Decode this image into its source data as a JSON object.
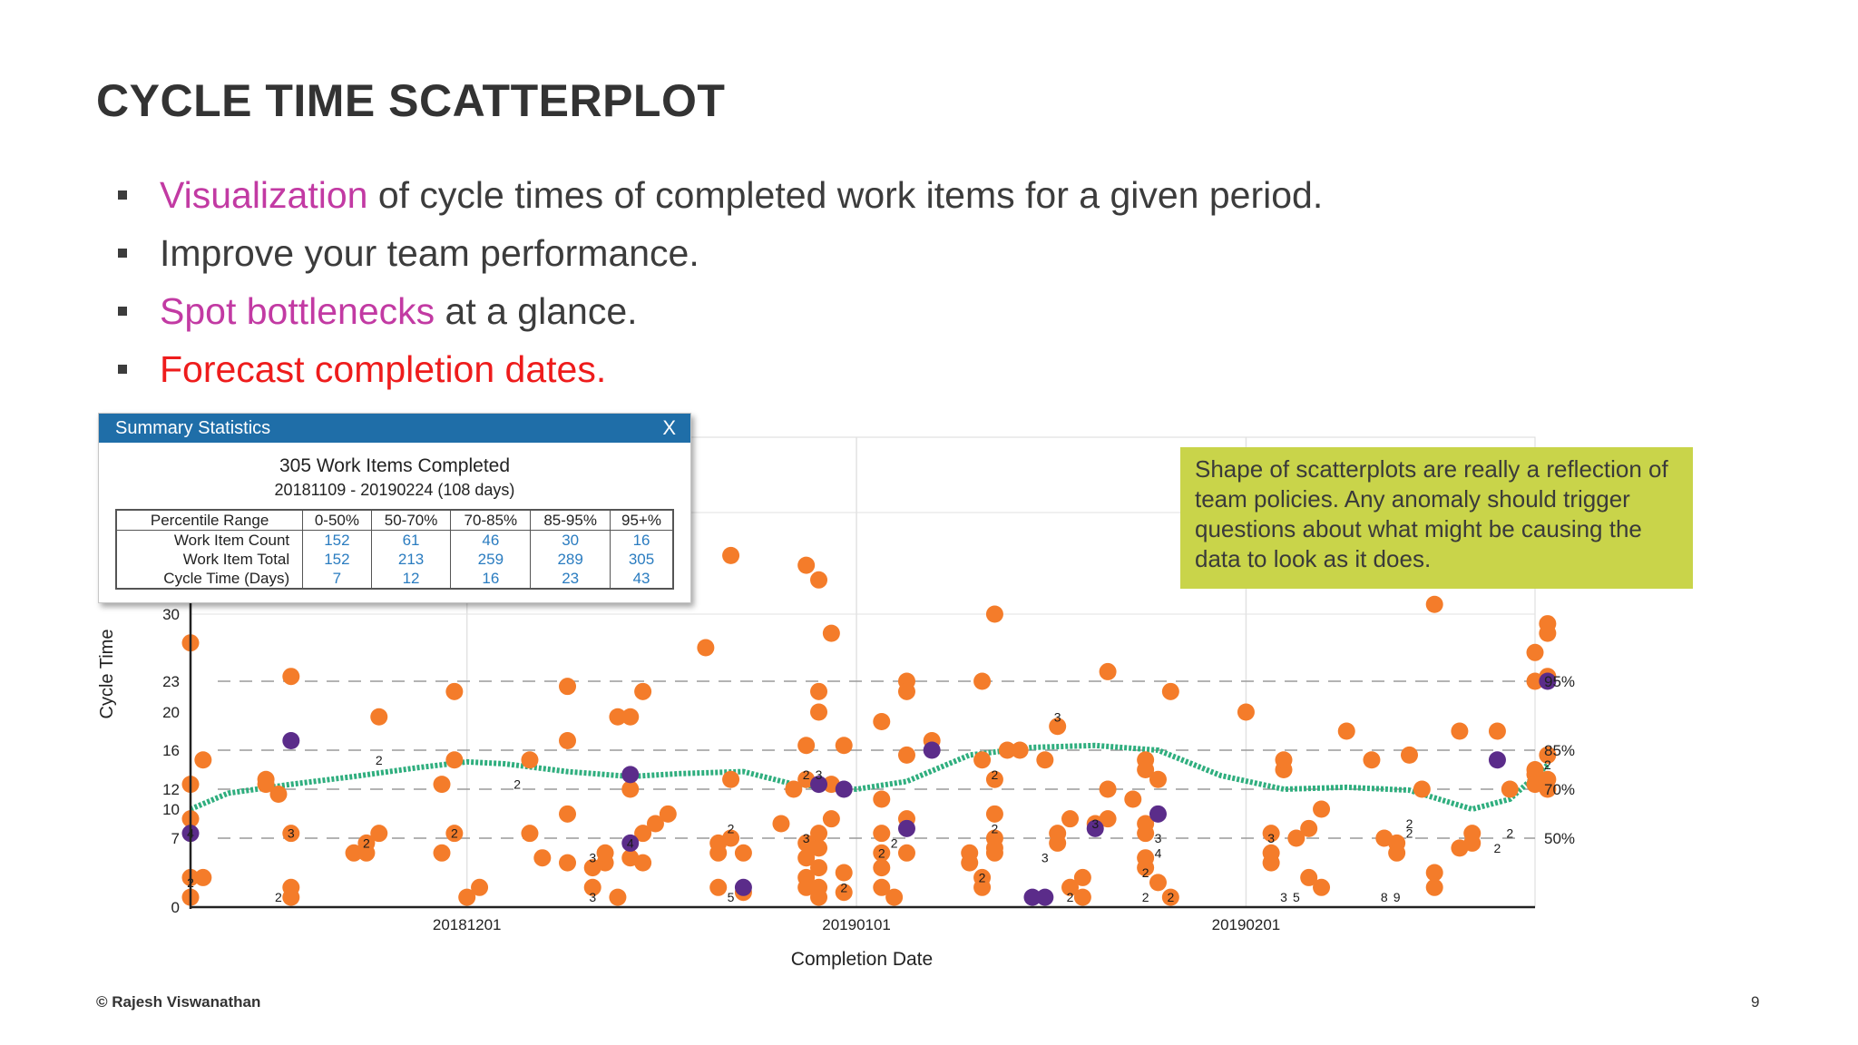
{
  "slide": {
    "title": "CYCLE TIME SCATTERPLOT",
    "bullets": [
      {
        "parts": [
          {
            "text": "Visualization",
            "color": "#c23aa3"
          },
          {
            "text": " of cycle times of completed work items for a given period.",
            "color": "#3c3c3c"
          }
        ]
      },
      {
        "parts": [
          {
            "text": "Improve your team performance.",
            "color": "#3c3c3c"
          }
        ]
      },
      {
        "parts": [
          {
            "text": "Spot bottlenecks",
            "color": "#c23aa3"
          },
          {
            "text": " at a glance.",
            "color": "#3c3c3c"
          }
        ]
      },
      {
        "parts": [
          {
            "text": "Forecast completion dates.",
            "color": "#ee1c1c"
          }
        ]
      }
    ],
    "footer": "© Rajesh Viswanathan",
    "page_number": "9"
  },
  "summary_panel": {
    "header": "Summary Statistics",
    "close_label": "X",
    "heading": "305 Work Items Completed",
    "subheading": "20181109 - 20190224 (108 days)",
    "columns": [
      "Percentile Range",
      "0-50%",
      "50-70%",
      "70-85%",
      "85-95%",
      "95+%"
    ],
    "rows": [
      {
        "label": "Work Item Count",
        "values": [
          "152",
          "61",
          "46",
          "30",
          "16"
        ]
      },
      {
        "label": "Work Item Total",
        "values": [
          "152",
          "213",
          "259",
          "289",
          "305"
        ]
      },
      {
        "label": "Cycle Time (Days)",
        "values": [
          "7",
          "12",
          "16",
          "23",
          "43"
        ]
      }
    ]
  },
  "note": {
    "text": "Shape of scatterplots are really a reflection of team policies. Any anomaly should trigger questions about what might be causing the data to look as it does."
  },
  "chart_data": {
    "type": "scatter",
    "xlabel": "Completion Date",
    "ylabel": "Cycle Time",
    "x_tick_labels": [
      {
        "date": "2018-12-01",
        "label": "20181201"
      },
      {
        "date": "2019-01-01",
        "label": "20190101"
      },
      {
        "date": "2019-02-01",
        "label": "20190201"
      }
    ],
    "y_ticks": [
      0,
      7,
      10,
      12,
      16,
      20,
      23,
      30
    ],
    "xlim": [
      "2018-11-09",
      "2019-02-24"
    ],
    "percentile_lines": [
      {
        "label": "50%",
        "value": 7
      },
      {
        "label": "70%",
        "value": 12
      },
      {
        "label": "85%",
        "value": 16
      },
      {
        "label": "95%",
        "value": 23
      }
    ],
    "colors": {
      "orange": "#f47c2a",
      "purple": "#5b2c8a",
      "trend": "#2fae7e",
      "grid": "#9a9a9a"
    },
    "orange_points": [
      [
        "2018-11-09",
        27
      ],
      [
        "2018-11-09",
        12.5
      ],
      [
        "2018-11-09",
        9
      ],
      [
        "2018-11-09",
        3
      ],
      [
        "2018-11-09",
        1
      ],
      [
        "2018-11-10",
        15
      ],
      [
        "2018-11-10",
        3
      ],
      [
        "2018-11-15",
        13
      ],
      [
        "2018-11-15",
        12.5
      ],
      [
        "2018-11-16",
        11.5
      ],
      [
        "2018-11-17",
        23.5
      ],
      [
        "2018-11-17",
        7.5
      ],
      [
        "2018-11-17",
        2
      ],
      [
        "2018-11-17",
        1
      ],
      [
        "2018-11-22",
        5.5
      ],
      [
        "2018-11-23",
        6.5
      ],
      [
        "2018-11-23",
        5.5
      ],
      [
        "2018-11-24",
        19.5
      ],
      [
        "2018-11-24",
        7.5
      ],
      [
        "2018-11-29",
        12.5
      ],
      [
        "2018-11-29",
        5.5
      ],
      [
        "2018-11-30",
        22
      ],
      [
        "2018-11-30",
        15
      ],
      [
        "2018-11-30",
        7.5
      ],
      [
        "2018-12-01",
        1
      ],
      [
        "2018-12-02",
        2
      ],
      [
        "2018-12-06",
        15
      ],
      [
        "2018-12-06",
        7.5
      ],
      [
        "2018-12-07",
        5
      ],
      [
        "2018-12-09",
        22.5
      ],
      [
        "2018-12-09",
        17
      ],
      [
        "2018-12-09",
        9.5
      ],
      [
        "2018-12-09",
        4.5
      ],
      [
        "2018-12-11",
        4
      ],
      [
        "2018-12-11",
        2
      ],
      [
        "2018-12-12",
        4.5
      ],
      [
        "2018-12-12",
        5.5
      ],
      [
        "2018-12-13",
        19.5
      ],
      [
        "2018-12-13",
        1
      ],
      [
        "2018-12-14",
        19.5
      ],
      [
        "2018-12-14",
        12
      ],
      [
        "2018-12-14",
        5
      ],
      [
        "2018-12-15",
        7.5
      ],
      [
        "2018-12-15",
        4.5
      ],
      [
        "2018-12-15",
        22
      ],
      [
        "2018-12-16",
        8.5
      ],
      [
        "2018-12-17",
        9.5
      ],
      [
        "2018-12-20",
        26.5
      ],
      [
        "2018-12-21",
        6.5
      ],
      [
        "2018-12-21",
        5.5
      ],
      [
        "2018-12-21",
        2
      ],
      [
        "2018-12-22",
        13
      ],
      [
        "2018-12-22",
        7
      ],
      [
        "2018-12-22",
        36
      ],
      [
        "2018-12-23",
        5.5
      ],
      [
        "2018-12-23",
        1.5
      ],
      [
        "2018-12-26",
        8.5
      ],
      [
        "2018-12-27",
        12
      ],
      [
        "2018-12-28",
        35
      ],
      [
        "2018-12-28",
        16.5
      ],
      [
        "2018-12-28",
        13
      ],
      [
        "2018-12-28",
        6.5
      ],
      [
        "2018-12-28",
        5
      ],
      [
        "2018-12-28",
        3
      ],
      [
        "2018-12-28",
        2
      ],
      [
        "2018-12-29",
        33.5
      ],
      [
        "2018-12-29",
        22
      ],
      [
        "2018-12-29",
        20
      ],
      [
        "2018-12-29",
        7.5
      ],
      [
        "2018-12-29",
        6
      ],
      [
        "2018-12-29",
        4
      ],
      [
        "2018-12-29",
        2
      ],
      [
        "2018-12-29",
        1
      ],
      [
        "2018-12-30",
        28
      ],
      [
        "2018-12-30",
        9
      ],
      [
        "2018-12-30",
        12.5
      ],
      [
        "2018-12-31",
        16.5
      ],
      [
        "2018-12-31",
        3.5
      ],
      [
        "2018-12-31",
        1.5
      ],
      [
        "2019-01-03",
        19
      ],
      [
        "2019-01-03",
        11
      ],
      [
        "2019-01-03",
        7.5
      ],
      [
        "2019-01-03",
        5.5
      ],
      [
        "2019-01-03",
        4
      ],
      [
        "2019-01-03",
        2
      ],
      [
        "2019-01-04",
        1
      ],
      [
        "2019-01-05",
        23
      ],
      [
        "2019-01-05",
        22
      ],
      [
        "2019-01-05",
        15.5
      ],
      [
        "2019-01-05",
        9
      ],
      [
        "2019-01-05",
        5.5
      ],
      [
        "2019-01-07",
        17
      ],
      [
        "2019-01-10",
        5.5
      ],
      [
        "2019-01-10",
        4.5
      ],
      [
        "2019-01-11",
        23
      ],
      [
        "2019-01-11",
        15
      ],
      [
        "2019-01-11",
        3
      ],
      [
        "2019-01-11",
        2
      ],
      [
        "2019-01-12",
        6
      ],
      [
        "2019-01-12",
        30
      ],
      [
        "2019-01-12",
        13
      ],
      [
        "2019-01-12",
        9.5
      ],
      [
        "2019-01-12",
        7
      ],
      [
        "2019-01-12",
        5.5
      ],
      [
        "2019-01-13",
        16
      ],
      [
        "2019-01-14",
        16
      ],
      [
        "2019-01-16",
        15
      ],
      [
        "2019-01-17",
        7.5
      ],
      [
        "2019-01-17",
        6.5
      ],
      [
        "2019-01-17",
        18.5
      ],
      [
        "2019-01-18",
        2
      ],
      [
        "2019-01-18",
        9
      ],
      [
        "2019-01-19",
        3
      ],
      [
        "2019-01-19",
        1
      ],
      [
        "2019-01-20",
        8.5
      ],
      [
        "2019-01-21",
        24
      ],
      [
        "2019-01-21",
        12
      ],
      [
        "2019-01-21",
        9
      ],
      [
        "2019-01-23",
        11
      ],
      [
        "2019-01-24",
        15
      ],
      [
        "2019-01-24",
        14
      ],
      [
        "2019-01-24",
        8.5
      ],
      [
        "2019-01-24",
        7.5
      ],
      [
        "2019-01-24",
        5
      ],
      [
        "2019-01-24",
        4
      ],
      [
        "2019-01-25",
        13
      ],
      [
        "2019-01-25",
        2.5
      ],
      [
        "2019-01-26",
        1
      ],
      [
        "2019-01-26",
        22
      ],
      [
        "2019-02-01",
        20
      ],
      [
        "2019-02-03",
        7.5
      ],
      [
        "2019-02-03",
        5.5
      ],
      [
        "2019-02-03",
        4.5
      ],
      [
        "2019-02-04",
        14
      ],
      [
        "2019-02-04",
        15
      ],
      [
        "2019-02-05",
        7
      ],
      [
        "2019-02-06",
        8
      ],
      [
        "2019-02-06",
        3
      ],
      [
        "2019-02-07",
        10
      ],
      [
        "2019-02-07",
        2
      ],
      [
        "2019-02-09",
        18
      ],
      [
        "2019-02-11",
        15
      ],
      [
        "2019-02-12",
        7
      ],
      [
        "2019-02-13",
        5.5
      ],
      [
        "2019-02-13",
        6.5
      ],
      [
        "2019-02-14",
        15.5
      ],
      [
        "2019-02-15",
        12
      ],
      [
        "2019-02-16",
        31
      ],
      [
        "2019-02-16",
        3.5
      ],
      [
        "2019-02-16",
        2
      ],
      [
        "2019-02-18",
        6
      ],
      [
        "2019-02-18",
        18
      ],
      [
        "2019-02-19",
        7.5
      ],
      [
        "2019-02-19",
        6.5
      ],
      [
        "2019-02-21",
        18
      ],
      [
        "2019-02-22",
        12
      ],
      [
        "2019-02-24",
        26
      ],
      [
        "2019-02-24",
        23
      ],
      [
        "2019-02-24",
        13.5
      ],
      [
        "2019-02-24",
        12.5
      ],
      [
        "2019-02-24",
        14
      ],
      [
        "2019-02-25",
        29
      ],
      [
        "2019-02-25",
        28
      ],
      [
        "2019-02-25",
        23.5
      ],
      [
        "2019-02-25",
        15.5
      ],
      [
        "2019-02-25",
        13
      ],
      [
        "2019-02-25",
        12
      ]
    ],
    "purple_points": [
      [
        "2018-11-09",
        7.5
      ],
      [
        "2018-11-17",
        17
      ],
      [
        "2018-12-14",
        13.5
      ],
      [
        "2018-12-14",
        6.5
      ],
      [
        "2018-12-23",
        2
      ],
      [
        "2018-12-29",
        12.5
      ],
      [
        "2018-12-31",
        12
      ],
      [
        "2019-01-05",
        8
      ],
      [
        "2019-01-07",
        16
      ],
      [
        "2019-01-15",
        1
      ],
      [
        "2019-01-16",
        1
      ],
      [
        "2019-01-20",
        8
      ],
      [
        "2019-01-25",
        9.5
      ],
      [
        "2019-02-21",
        15
      ],
      [
        "2019-02-25",
        23
      ]
    ],
    "count_labels": [
      [
        "2018-11-09",
        7.5,
        "4"
      ],
      [
        "2018-11-09",
        2.5,
        "2"
      ],
      [
        "2018-11-16",
        1,
        "2"
      ],
      [
        "2018-11-17",
        7.5,
        "3"
      ],
      [
        "2018-11-23",
        6.5,
        "2"
      ],
      [
        "2018-11-24",
        15,
        "2"
      ],
      [
        "2018-11-30",
        7.5,
        "2"
      ],
      [
        "2018-12-05",
        12.5,
        "2"
      ],
      [
        "2018-12-11",
        5,
        "3"
      ],
      [
        "2018-12-11",
        1,
        "3"
      ],
      [
        "2018-12-14",
        6.5,
        "4"
      ],
      [
        "2018-12-22",
        8,
        "2"
      ],
      [
        "2018-12-22",
        1,
        "5"
      ],
      [
        "2018-12-28",
        13.5,
        "2"
      ],
      [
        "2018-12-28",
        7,
        "3"
      ],
      [
        "2018-12-29",
        13.5,
        "3"
      ],
      [
        "2018-12-31",
        2,
        "2"
      ],
      [
        "2019-01-03",
        5.5,
        "2"
      ],
      [
        "2019-01-04",
        6.5,
        "2"
      ],
      [
        "2019-01-11",
        3,
        "2"
      ],
      [
        "2019-01-12",
        13.5,
        "2"
      ],
      [
        "2019-01-12",
        8,
        "2"
      ],
      [
        "2019-01-17",
        19.5,
        "3"
      ],
      [
        "2019-01-16",
        5,
        "3"
      ],
      [
        "2019-01-18",
        1,
        "2"
      ],
      [
        "2019-01-20",
        8.5,
        "3"
      ],
      [
        "2019-01-24",
        3.5,
        "2"
      ],
      [
        "2019-01-24",
        1,
        "2"
      ],
      [
        "2019-01-25",
        5.5,
        "4"
      ],
      [
        "2019-01-25",
        7,
        "3"
      ],
      [
        "2019-01-26",
        1,
        "2"
      ],
      [
        "2019-02-03",
        7,
        "3"
      ],
      [
        "2019-02-04",
        1,
        "3"
      ],
      [
        "2019-02-05",
        1,
        "5"
      ],
      [
        "2019-02-12",
        1,
        "8"
      ],
      [
        "2019-02-13",
        1,
        "9"
      ],
      [
        "2019-02-14",
        8.5,
        "2"
      ],
      [
        "2019-02-14",
        7.5,
        "2"
      ],
      [
        "2019-02-21",
        6,
        "2"
      ],
      [
        "2019-02-22",
        7.5,
        "2"
      ],
      [
        "2019-02-25",
        14.5,
        "2"
      ]
    ],
    "trend": [
      [
        "2018-11-09",
        10
      ],
      [
        "2018-11-12",
        11.6
      ],
      [
        "2018-11-17",
        12.5
      ],
      [
        "2018-11-22",
        13.3
      ],
      [
        "2018-11-27",
        14.2
      ],
      [
        "2018-12-01",
        14.8
      ],
      [
        "2018-12-04",
        14.6
      ],
      [
        "2018-12-09",
        13.8
      ],
      [
        "2018-12-14",
        13.3
      ],
      [
        "2018-12-18",
        13.6
      ],
      [
        "2018-12-23",
        13.8
      ],
      [
        "2018-12-27",
        12.5
      ],
      [
        "2019-01-01",
        12.0
      ],
      [
        "2019-01-05",
        12.8
      ],
      [
        "2019-01-10",
        15.5
      ],
      [
        "2019-01-15",
        16.3
      ],
      [
        "2019-01-20",
        16.5
      ],
      [
        "2019-01-25",
        16.0
      ],
      [
        "2019-01-30",
        13.4
      ],
      [
        "2019-02-04",
        12.0
      ],
      [
        "2019-02-09",
        12.2
      ],
      [
        "2019-02-14",
        11.9
      ],
      [
        "2019-02-19",
        10.0
      ],
      [
        "2019-02-22",
        11.0
      ],
      [
        "2019-02-25",
        14.5
      ]
    ]
  }
}
